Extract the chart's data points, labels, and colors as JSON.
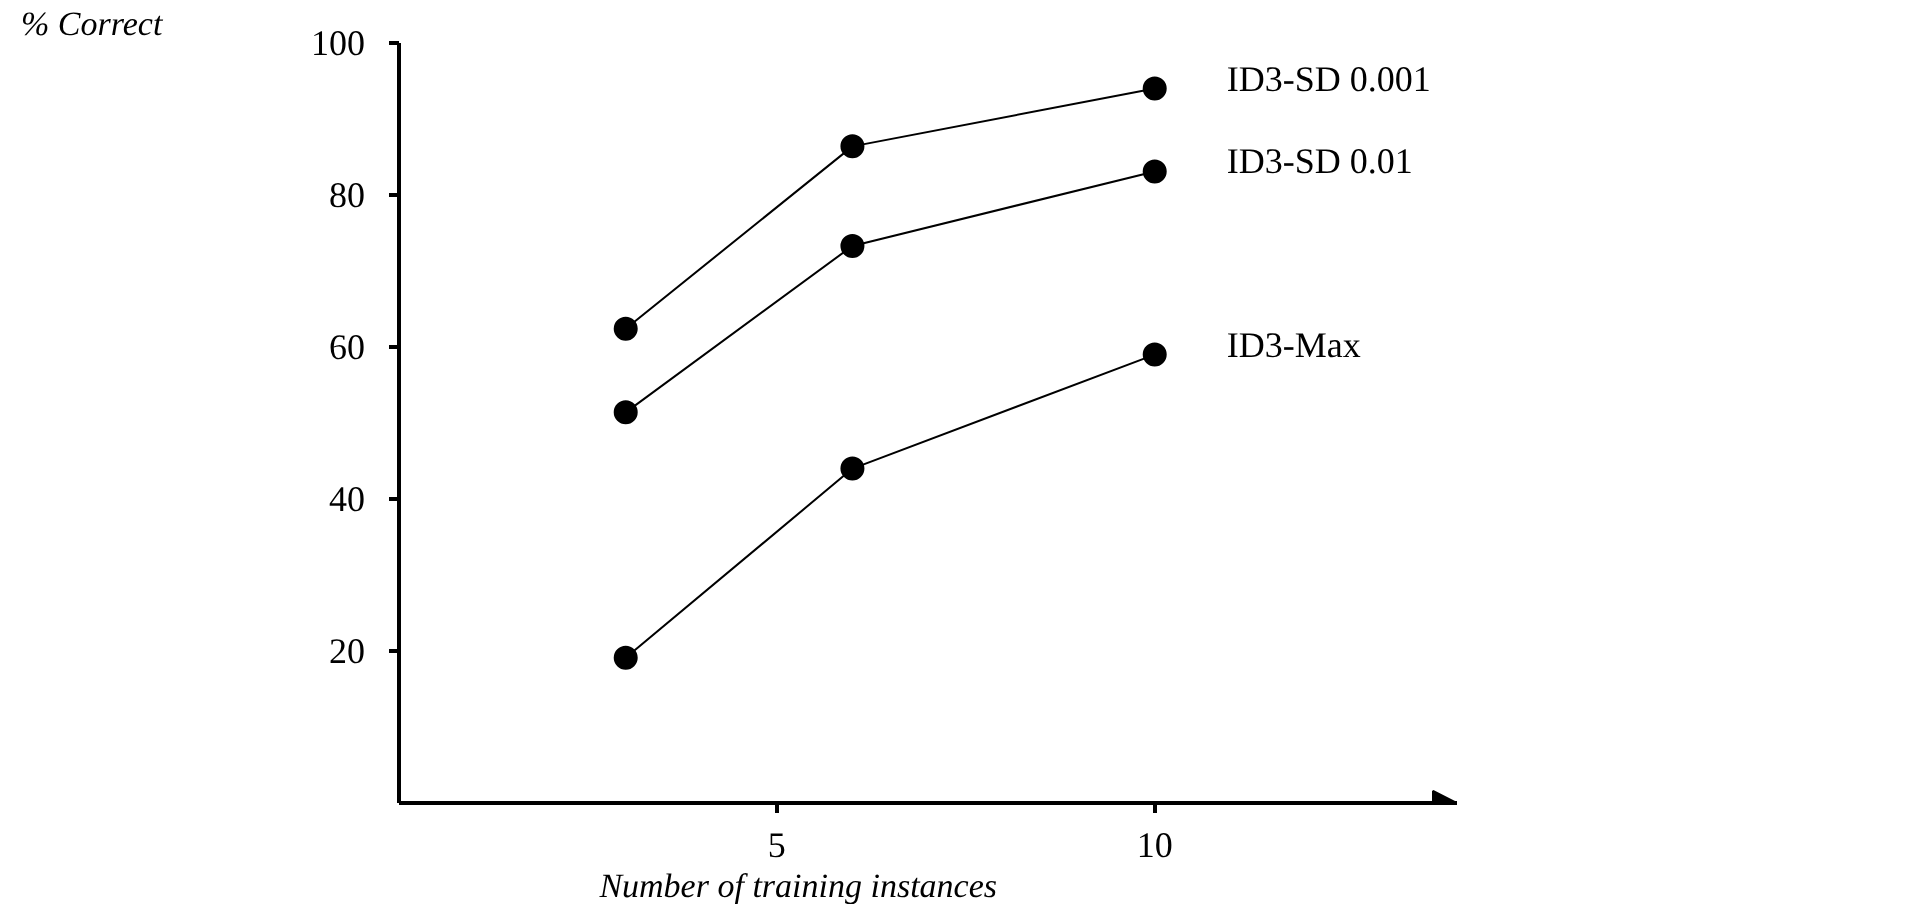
{
  "chart_data": {
    "type": "line",
    "xlabel": "Number of training instances",
    "ylabel": "% Correct",
    "x": [
      3,
      6,
      10
    ],
    "series": [
      {
        "name": "ID3-SD 0.001",
        "color": "#000000",
        "values": [
          62.4,
          86.4,
          94
        ]
      },
      {
        "name": "ID3-SD 0.01",
        "color": "#000000",
        "values": [
          51.4,
          73.3,
          83.1
        ]
      },
      {
        "name": "ID3-Max",
        "color": "#000000",
        "values": [
          19.1,
          44,
          59
        ]
      }
    ],
    "xlim": [
      0,
      14
    ],
    "ylim": [
      0,
      100
    ],
    "xticks": [
      5,
      10
    ],
    "yticks": [
      20,
      40,
      60,
      80,
      100
    ],
    "grid": false,
    "marker": "circle",
    "line_style": "solid"
  }
}
